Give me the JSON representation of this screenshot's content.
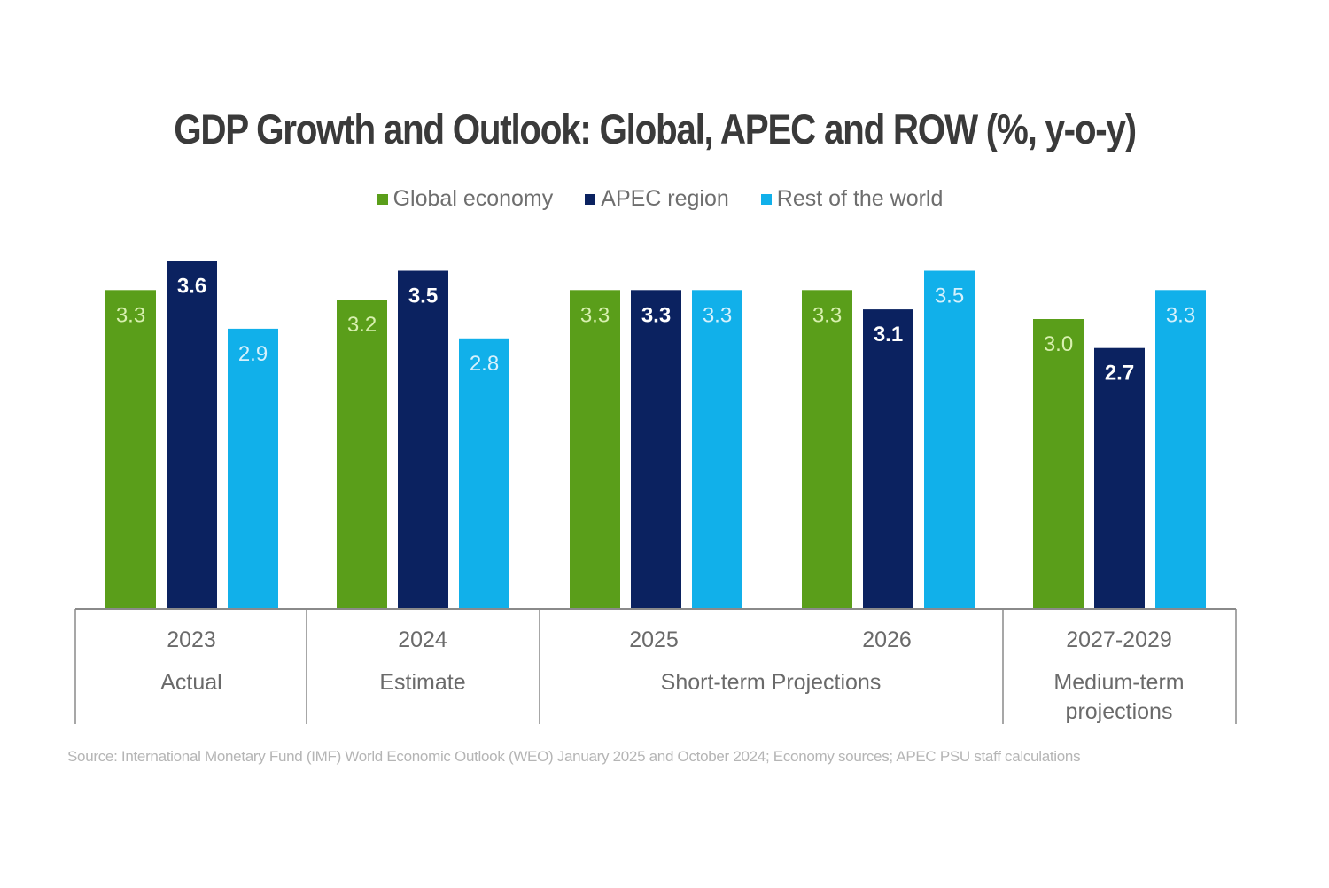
{
  "chart_data": {
    "type": "bar",
    "title": "GDP Growth and Outlook: Global, APEC and ROW (%, y-o-y)",
    "xlabel": "",
    "ylabel": "",
    "ylim": [
      0,
      3.6
    ],
    "grid": false,
    "legend_position": "top-center",
    "categories": [
      "2023",
      "2024",
      "2025",
      "2026",
      "2027-2029"
    ],
    "category_groups": [
      {
        "label": "Actual",
        "categories": [
          "2023"
        ]
      },
      {
        "label": "Estimate",
        "categories": [
          "2024"
        ]
      },
      {
        "label": "Short-term Projections",
        "categories": [
          "2025",
          "2026"
        ]
      },
      {
        "label": "Medium-term projections",
        "categories": [
          "2027-2029"
        ]
      }
    ],
    "series": [
      {
        "name": "Global economy",
        "color": "#5a9e1a",
        "label_color": "#d8f0b0",
        "label_bold": false,
        "values": [
          3.3,
          3.2,
          3.3,
          3.3,
          3.0
        ]
      },
      {
        "name": "APEC region",
        "color": "#0b2260",
        "label_color": "#ffffff",
        "label_bold": true,
        "values": [
          3.6,
          3.5,
          3.3,
          3.1,
          2.7
        ]
      },
      {
        "name": "Rest of the world",
        "color": "#11b0ea",
        "label_color": "#d6f1fc",
        "label_bold": false,
        "values": [
          2.9,
          2.8,
          3.3,
          3.5,
          3.3
        ]
      }
    ],
    "data_labels": [
      [
        "3.3",
        "3.2",
        "3.3",
        "3.3",
        "3.0"
      ],
      [
        "3.6",
        "3.5",
        "3.3",
        "3.1",
        "2.7"
      ],
      [
        "2.9",
        "2.8",
        "3.3",
        "3.5",
        "3.3"
      ]
    ]
  },
  "source_note": "Source: International Monetary Fund (IMF) World Economic Outlook (WEO)  January 2025 and October 2024; Economy sources; APEC PSU staff calculations"
}
